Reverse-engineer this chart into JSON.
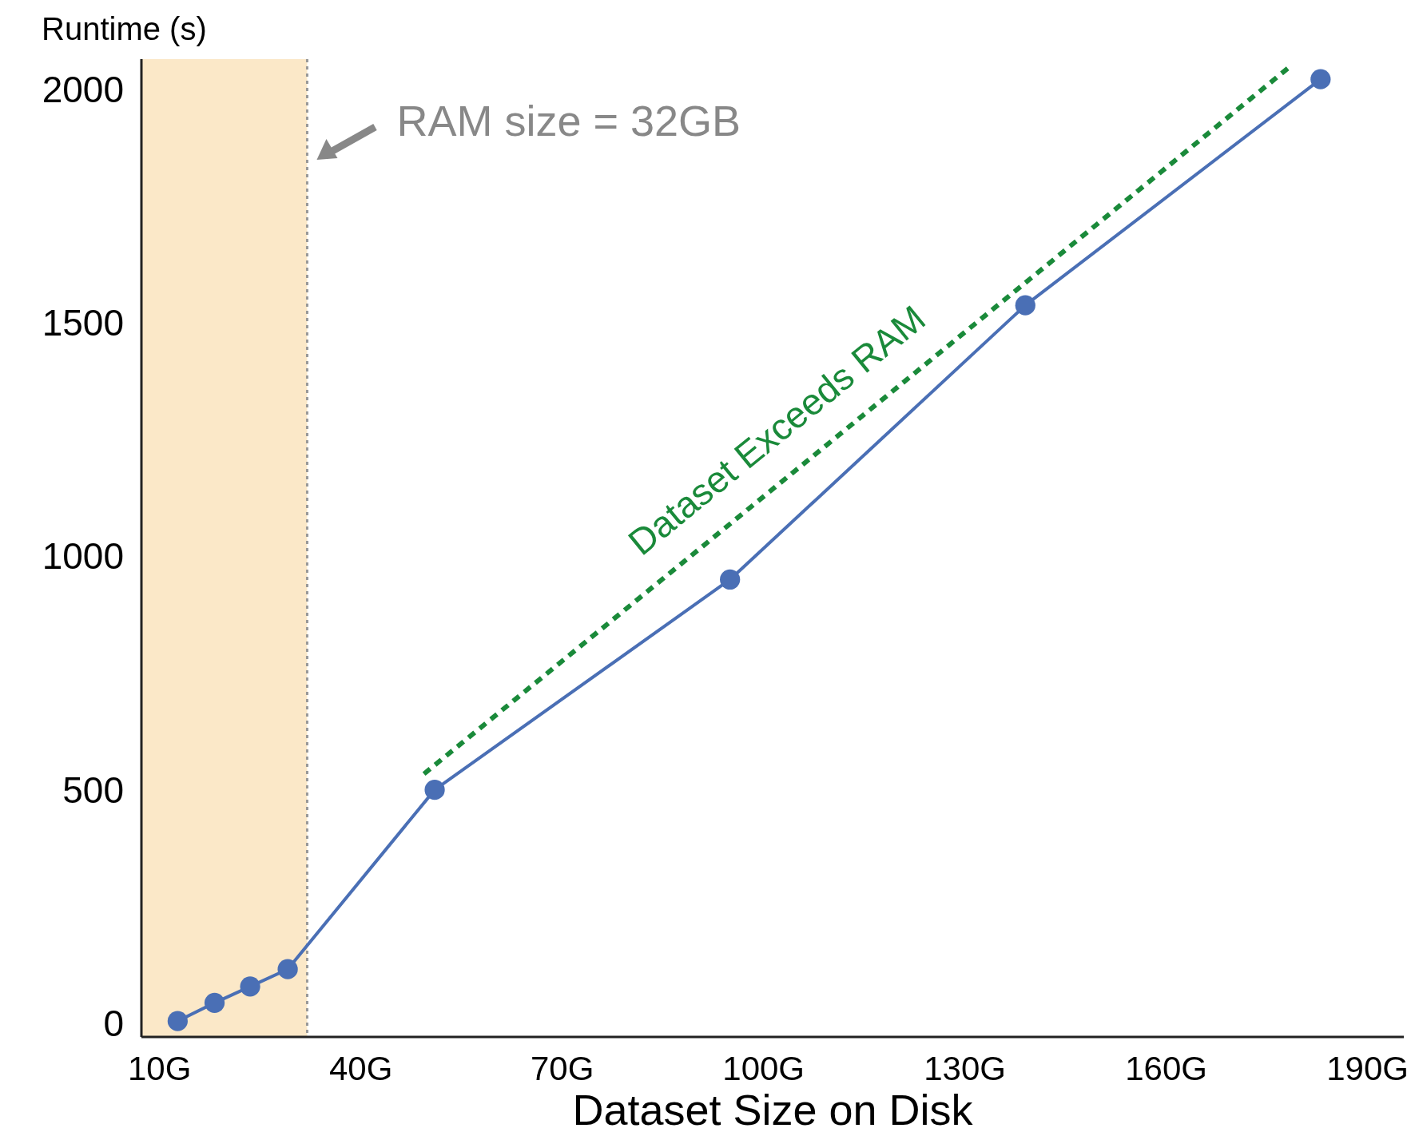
{
  "chart_data": {
    "type": "line",
    "xlabel": "Dataset Size on Disk",
    "ylabel": "Runtime (s)",
    "xlim": [
      7.3,
      195.4
    ],
    "ylim": [
      -29,
      2064
    ],
    "xticks": [
      {
        "value": 10,
        "label": "10G"
      },
      {
        "value": 40,
        "label": "40G"
      },
      {
        "value": 70,
        "label": "70G"
      },
      {
        "value": 100,
        "label": "100G"
      },
      {
        "value": 130,
        "label": "130G"
      },
      {
        "value": 160,
        "label": "160G"
      },
      {
        "value": 190,
        "label": "190G"
      }
    ],
    "yticks": [
      0,
      500,
      1000,
      1500,
      2000
    ],
    "marker": "circle",
    "grid": false,
    "series": [
      {
        "color": "#4a6fb5",
        "x": [
          12.7,
          18.2,
          23.5,
          29.1,
          51,
          95,
          139,
          183
        ],
        "values": [
          5,
          44,
          79,
          116,
          500,
          950,
          1537,
          2021
        ]
      },
      {
        "type": "line",
        "color": "#1a8a3a",
        "line_style": "dashed",
        "marker": "none",
        "x": [
          49.4,
          178.1
        ],
        "values": [
          534,
          2044
        ]
      }
    ],
    "bands": [
      {
        "axis": "x",
        "from": 7.3,
        "to": 32,
        "color": "#fbe8c8"
      }
    ],
    "ref_lines": [
      {
        "axis": "x",
        "value": 32,
        "label": "RAM size = 32GB",
        "color": "#999999",
        "line_style": "dotted"
      }
    ],
    "annotations": [
      "Dataset Exceeds RAM"
    ]
  }
}
